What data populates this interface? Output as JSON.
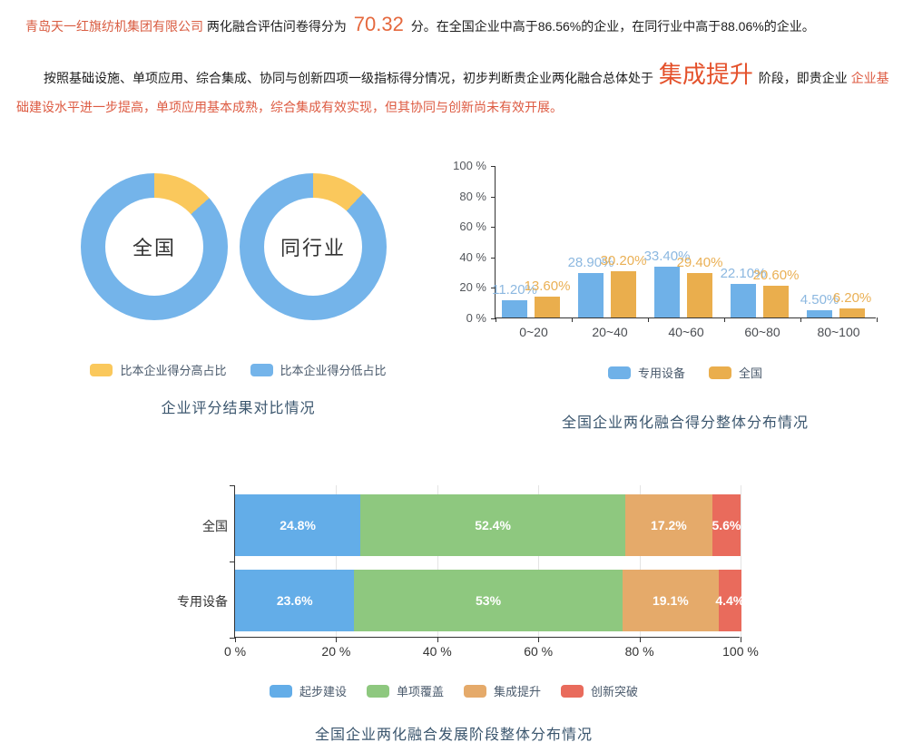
{
  "report": {
    "line1": {
      "company": "青岛天一红旗纺机集团有限公司",
      "mid": "两化融合评估问卷得分为",
      "score": "70.32",
      "tail": "分。在全国企业中高于86.56%的企业，在同行业中高于88.06%的企业。"
    },
    "line2": {
      "black_head": "按照基础设施、单项应用、综合集成、协同与创新四项一级指标得分情况，初步判断贵企业两化融合总体处于",
      "stage": "集成提升",
      "black_mid": "阶段，即贵企业",
      "red_tail": "企业基础建设水平进一步提高，单项应用基本成熟，综合集成有效实现，但其协同与创新尚未有效开展。"
    }
  },
  "chart_data": [
    {
      "id": "donut_compare",
      "type": "pie",
      "title": "企业评分结果对比情况",
      "legend": [
        "比本企业得分高占比",
        "比本企业得分低占比"
      ],
      "legend_colors": [
        "#fac85c",
        "#74b4ea"
      ],
      "donuts": [
        {
          "label": "全国",
          "slices": [
            {
              "name": "比本企业得分高占比",
              "value": 13.44
            },
            {
              "name": "比本企业得分低占比",
              "value": 86.56
            }
          ]
        },
        {
          "label": "同行业",
          "slices": [
            {
              "name": "比本企业得分高占比",
              "value": 11.94
            },
            {
              "name": "比本企业得分低占比",
              "value": 88.06
            }
          ]
        }
      ]
    },
    {
      "id": "score_distribution",
      "type": "bar",
      "title": "全国企业两化融合得分整体分布情况",
      "categories": [
        "0~20",
        "20~40",
        "40~60",
        "60~80",
        "80~100"
      ],
      "series": [
        {
          "name": "专用设备",
          "color": "#6fb1e8",
          "label_color": "#8cb8e0",
          "values": [
            11.2,
            28.9,
            33.4,
            22.1,
            4.5
          ],
          "labels": [
            "11.20%",
            "28.90%",
            "33.40%",
            "22.10%",
            "4.50%"
          ]
        },
        {
          "name": "全国",
          "color": "#eaae4d",
          "label_color": "#eab055",
          "values": [
            13.6,
            30.2,
            29.4,
            20.6,
            6.2
          ],
          "labels": [
            "13.60%",
            "30.20%",
            "29.40%",
            "20.60%",
            "6.20%"
          ]
        }
      ],
      "y_ticks": [
        "100 %",
        "80 %",
        "60 %",
        "40 %",
        "20 %",
        "0 %"
      ],
      "ylim": [
        0,
        100
      ],
      "grid": false,
      "legend_position": "bottom"
    },
    {
      "id": "stage_distribution",
      "type": "stacked-bar",
      "title": "全国企业两化融合发展阶段整体分布情况",
      "categories": [
        "全国",
        "专用设备"
      ],
      "series": [
        {
          "name": "起步建设",
          "color": "#63ade8",
          "values": [
            24.8,
            23.6
          ],
          "labels": [
            "24.8%",
            "23.6%"
          ]
        },
        {
          "name": "单项覆盖",
          "color": "#8ec87f",
          "values": [
            52.4,
            53.0
          ],
          "labels": [
            "52.4%",
            "53%"
          ]
        },
        {
          "name": "集成提升",
          "color": "#e5aa6a",
          "values": [
            17.2,
            19.1
          ],
          "labels": [
            "17.2%",
            "19.1%"
          ]
        },
        {
          "name": "创新突破",
          "color": "#e96b5c",
          "values": [
            5.6,
            4.4
          ],
          "labels": [
            "5.6%",
            "4.4%"
          ]
        }
      ],
      "x_ticks": [
        "0 %",
        "20 %",
        "40 %",
        "60 %",
        "80 %",
        "100 %"
      ],
      "xlim": [
        0,
        100
      ],
      "grid": true,
      "legend_position": "bottom"
    }
  ]
}
